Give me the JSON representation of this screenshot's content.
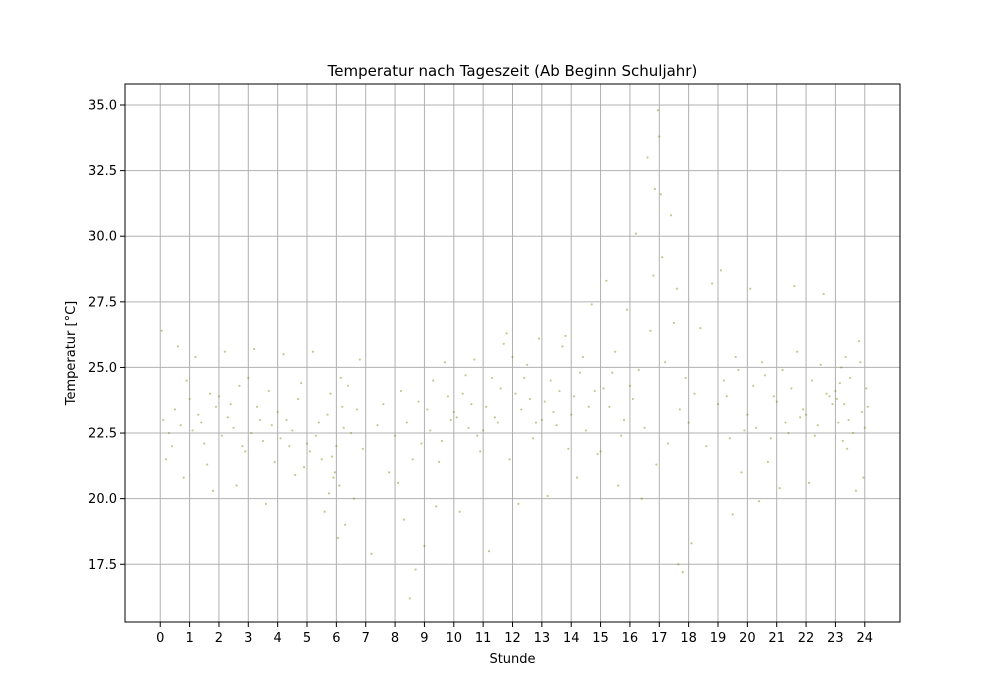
{
  "chart_data": {
    "type": "scatter",
    "title": "Temperatur nach Tageszeit (Ab Beginn Schuljahr)",
    "xlabel": "Stunde",
    "ylabel": "Temperatur [°C]",
    "xlim": [
      -1.2,
      25.2
    ],
    "ylim": [
      15.3,
      35.8
    ],
    "x_ticks": [
      0,
      1,
      2,
      3,
      4,
      5,
      6,
      7,
      8,
      9,
      10,
      11,
      12,
      13,
      14,
      15,
      16,
      17,
      18,
      19,
      20,
      21,
      22,
      23,
      24
    ],
    "y_ticks": [
      17.5,
      20.0,
      22.5,
      25.0,
      27.5,
      30.0,
      32.5,
      35.0
    ],
    "grid": true,
    "point_color": "#808000",
    "series": [
      {
        "points": [
          [
            0.1,
            23.0
          ],
          [
            0.3,
            22.5
          ],
          [
            0.5,
            23.4
          ],
          [
            0.7,
            22.8
          ],
          [
            0.9,
            24.5
          ],
          [
            0.2,
            21.5
          ],
          [
            0.6,
            25.8
          ],
          [
            0.4,
            22.0
          ],
          [
            0.05,
            26.4
          ],
          [
            0.8,
            20.8
          ],
          [
            1.1,
            22.6
          ],
          [
            1.3,
            23.2
          ],
          [
            1.5,
            22.1
          ],
          [
            1.7,
            24.0
          ],
          [
            1.9,
            23.5
          ],
          [
            1.2,
            25.4
          ],
          [
            1.6,
            21.3
          ],
          [
            1.4,
            22.9
          ],
          [
            1.8,
            20.3
          ],
          [
            1.0,
            23.8
          ],
          [
            2.1,
            22.4
          ],
          [
            2.3,
            23.1
          ],
          [
            2.5,
            22.7
          ],
          [
            2.7,
            24.3
          ],
          [
            2.9,
            21.8
          ],
          [
            2.2,
            25.6
          ],
          [
            2.6,
            20.5
          ],
          [
            2.4,
            23.6
          ],
          [
            2.8,
            22.0
          ],
          [
            2.0,
            23.9
          ],
          [
            3.1,
            22.5
          ],
          [
            3.3,
            23.5
          ],
          [
            3.5,
            22.2
          ],
          [
            3.7,
            24.1
          ],
          [
            3.9,
            21.4
          ],
          [
            3.2,
            25.7
          ],
          [
            3.6,
            19.8
          ],
          [
            3.4,
            23.0
          ],
          [
            3.8,
            22.8
          ],
          [
            3.0,
            24.6
          ],
          [
            4.1,
            22.3
          ],
          [
            4.3,
            23.0
          ],
          [
            4.5,
            22.6
          ],
          [
            4.7,
            23.8
          ],
          [
            4.9,
            21.2
          ],
          [
            4.2,
            25.5
          ],
          [
            4.6,
            20.9
          ],
          [
            4.4,
            22.0
          ],
          [
            4.8,
            24.4
          ],
          [
            4.0,
            23.3
          ],
          [
            5.1,
            21.8
          ],
          [
            5.3,
            22.4
          ],
          [
            5.5,
            21.5
          ],
          [
            5.7,
            23.2
          ],
          [
            5.9,
            20.8
          ],
          [
            5.2,
            25.6
          ],
          [
            5.6,
            19.5
          ],
          [
            5.4,
            22.9
          ],
          [
            5.8,
            24.0
          ],
          [
            5.0,
            22.1
          ],
          [
            5.95,
            21.0
          ],
          [
            6.0,
            22.0
          ],
          [
            6.1,
            20.5
          ],
          [
            6.2,
            23.5
          ],
          [
            6.3,
            19.0
          ],
          [
            6.05,
            18.5
          ],
          [
            6.15,
            24.6
          ],
          [
            5.85,
            21.6
          ],
          [
            6.25,
            22.7
          ],
          [
            5.75,
            20.2
          ],
          [
            6.5,
            22.5
          ],
          [
            6.7,
            23.4
          ],
          [
            6.9,
            21.9
          ],
          [
            6.4,
            24.3
          ],
          [
            6.6,
            20.0
          ],
          [
            6.8,
            25.3
          ],
          [
            7.2,
            17.9
          ],
          [
            7.4,
            22.8
          ],
          [
            7.6,
            23.6
          ],
          [
            7.8,
            21.0
          ],
          [
            8.0,
            22.4
          ],
          [
            8.1,
            20.6
          ],
          [
            8.2,
            24.1
          ],
          [
            8.3,
            19.2
          ],
          [
            8.5,
            16.2
          ],
          [
            8.4,
            22.9
          ],
          [
            8.6,
            21.5
          ],
          [
            8.7,
            17.3
          ],
          [
            8.8,
            23.7
          ],
          [
            8.9,
            22.1
          ],
          [
            9.0,
            18.2
          ],
          [
            9.1,
            23.4
          ],
          [
            9.2,
            22.6
          ],
          [
            9.3,
            24.5
          ],
          [
            9.5,
            21.4
          ],
          [
            9.7,
            25.2
          ],
          [
            9.9,
            23.0
          ],
          [
            9.4,
            19.7
          ],
          [
            9.6,
            22.2
          ],
          [
            9.8,
            23.9
          ],
          [
            10.1,
            23.1
          ],
          [
            10.3,
            24.0
          ],
          [
            10.5,
            22.7
          ],
          [
            10.7,
            25.3
          ],
          [
            10.9,
            21.8
          ],
          [
            10.2,
            19.5
          ],
          [
            10.6,
            23.6
          ],
          [
            10.4,
            24.7
          ],
          [
            10.8,
            22.4
          ],
          [
            10.0,
            23.3
          ],
          [
            11.1,
            23.5
          ],
          [
            11.3,
            24.6
          ],
          [
            11.5,
            22.9
          ],
          [
            11.7,
            25.9
          ],
          [
            11.9,
            21.5
          ],
          [
            11.2,
            18.0
          ],
          [
            11.6,
            24.2
          ],
          [
            11.4,
            23.1
          ],
          [
            11.8,
            26.3
          ],
          [
            11.0,
            22.6
          ],
          [
            12.1,
            24.0
          ],
          [
            12.3,
            23.4
          ],
          [
            12.5,
            25.1
          ],
          [
            12.7,
            22.3
          ],
          [
            12.9,
            26.1
          ],
          [
            12.2,
            19.8
          ],
          [
            12.6,
            23.8
          ],
          [
            12.4,
            24.6
          ],
          [
            12.8,
            22.9
          ],
          [
            12.0,
            25.4
          ],
          [
            13.1,
            23.7
          ],
          [
            13.3,
            24.5
          ],
          [
            13.5,
            22.8
          ],
          [
            13.7,
            25.8
          ],
          [
            13.9,
            21.9
          ],
          [
            13.2,
            20.1
          ],
          [
            13.6,
            24.1
          ],
          [
            13.4,
            23.3
          ],
          [
            13.8,
            26.2
          ],
          [
            13.0,
            23.0
          ],
          [
            14.1,
            23.9
          ],
          [
            14.3,
            24.8
          ],
          [
            14.5,
            22.6
          ],
          [
            14.7,
            27.4
          ],
          [
            14.9,
            21.7
          ],
          [
            14.2,
            20.8
          ],
          [
            14.6,
            23.5
          ],
          [
            14.4,
            25.4
          ],
          [
            14.8,
            24.1
          ],
          [
            14.0,
            23.2
          ],
          [
            15.1,
            24.2
          ],
          [
            15.3,
            23.5
          ],
          [
            15.5,
            25.6
          ],
          [
            15.7,
            22.4
          ],
          [
            15.9,
            27.2
          ],
          [
            15.2,
            28.3
          ],
          [
            15.6,
            20.5
          ],
          [
            15.4,
            24.8
          ],
          [
            15.8,
            23.0
          ],
          [
            15.0,
            21.8
          ],
          [
            16.1,
            23.8
          ],
          [
            16.3,
            24.9
          ],
          [
            16.5,
            22.7
          ],
          [
            16.7,
            26.4
          ],
          [
            16.9,
            21.3
          ],
          [
            16.2,
            30.1
          ],
          [
            16.6,
            33.0
          ],
          [
            16.4,
            20.0
          ],
          [
            16.8,
            28.5
          ],
          [
            16.0,
            24.3
          ],
          [
            16.95,
            34.8
          ],
          [
            17.0,
            33.8
          ],
          [
            16.85,
            31.8
          ],
          [
            17.05,
            31.6
          ],
          [
            17.1,
            29.2
          ],
          [
            17.2,
            25.2
          ],
          [
            17.3,
            22.1
          ],
          [
            17.4,
            30.8
          ],
          [
            17.6,
            28.0
          ],
          [
            17.8,
            17.2
          ],
          [
            17.5,
            26.7
          ],
          [
            17.7,
            23.4
          ],
          [
            17.9,
            24.6
          ],
          [
            17.65,
            17.5
          ],
          [
            18.0,
            22.9
          ],
          [
            18.1,
            18.3
          ],
          [
            18.2,
            24.0
          ],
          [
            18.4,
            26.5
          ],
          [
            18.6,
            22.0
          ],
          [
            18.8,
            28.2
          ],
          [
            19.0,
            23.6
          ],
          [
            19.2,
            24.5
          ],
          [
            19.4,
            22.3
          ],
          [
            19.6,
            25.4
          ],
          [
            19.8,
            21.0
          ],
          [
            19.1,
            28.7
          ],
          [
            19.5,
            19.4
          ],
          [
            19.3,
            23.9
          ],
          [
            19.7,
            24.9
          ],
          [
            19.9,
            22.6
          ],
          [
            20.0,
            23.2
          ],
          [
            20.1,
            28.0
          ],
          [
            20.2,
            24.3
          ],
          [
            20.3,
            22.7
          ],
          [
            20.5,
            25.2
          ],
          [
            20.7,
            21.4
          ],
          [
            20.9,
            23.9
          ],
          [
            20.4,
            19.9
          ],
          [
            20.6,
            24.7
          ],
          [
            20.8,
            22.3
          ],
          [
            21.0,
            23.7
          ],
          [
            21.2,
            24.9
          ],
          [
            21.4,
            22.5
          ],
          [
            21.6,
            28.1
          ],
          [
            21.8,
            23.1
          ],
          [
            21.1,
            20.4
          ],
          [
            21.5,
            24.2
          ],
          [
            21.3,
            22.9
          ],
          [
            21.7,
            25.6
          ],
          [
            21.9,
            23.4
          ],
          [
            22.0,
            23.2
          ],
          [
            22.2,
            24.5
          ],
          [
            22.4,
            22.8
          ],
          [
            22.6,
            27.8
          ],
          [
            22.8,
            23.9
          ],
          [
            22.1,
            20.6
          ],
          [
            22.5,
            25.1
          ],
          [
            22.3,
            22.4
          ],
          [
            22.7,
            24.0
          ],
          [
            22.9,
            23.6
          ],
          [
            23.0,
            24.1
          ],
          [
            23.1,
            22.9
          ],
          [
            23.2,
            25.0
          ],
          [
            23.3,
            23.6
          ],
          [
            23.4,
            21.9
          ],
          [
            23.5,
            24.6
          ],
          [
            23.6,
            22.5
          ],
          [
            23.7,
            20.3
          ],
          [
            23.8,
            26.0
          ],
          [
            23.9,
            23.3
          ],
          [
            23.05,
            23.8
          ],
          [
            23.15,
            24.4
          ],
          [
            23.25,
            22.2
          ],
          [
            23.35,
            25.4
          ],
          [
            23.45,
            23.0
          ],
          [
            24.0,
            22.7
          ],
          [
            24.05,
            24.2
          ],
          [
            23.95,
            20.8
          ],
          [
            23.85,
            25.2
          ],
          [
            24.1,
            23.5
          ]
        ]
      }
    ]
  }
}
